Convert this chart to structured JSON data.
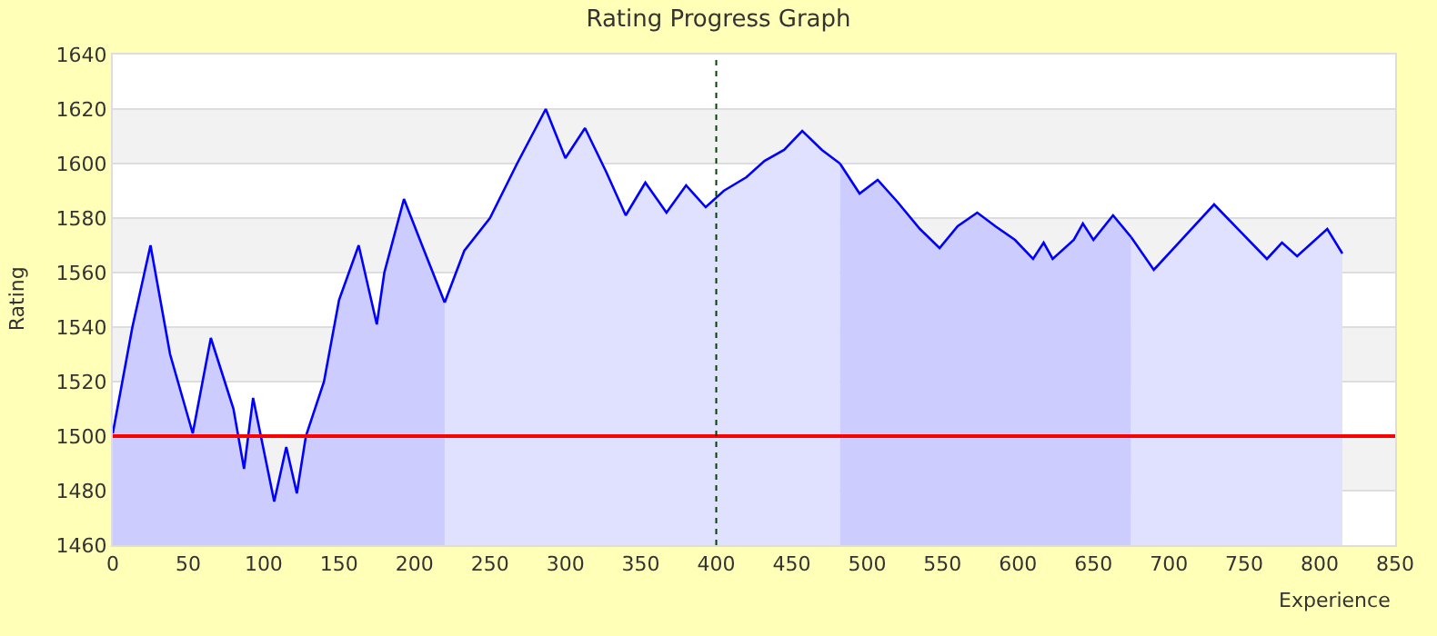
{
  "chart_data": {
    "type": "area",
    "title": "Rating Progress Graph",
    "xlabel": "Experience",
    "ylabel": "Rating",
    "series": [
      {
        "color": "#0000ff",
        "x": [
          0,
          13,
          25,
          38,
          53,
          65,
          80,
          87,
          93,
          107,
          115,
          122,
          128,
          140,
          150,
          163,
          175,
          180,
          193,
          205,
          220
        ],
        "values": [
          1501,
          1540,
          1570,
          1530,
          1501,
          1536,
          1510,
          1488,
          1514,
          1476,
          1496,
          1479,
          1500,
          1520,
          1550,
          1570,
          1541,
          1560,
          1587,
          1570,
          1549
        ]
      },
      {
        "color": "#0000ff",
        "x": [
          220,
          233,
          250,
          268,
          287,
          300,
          313,
          327,
          340,
          353,
          367,
          380,
          393,
          405,
          420,
          432,
          445,
          457,
          470,
          482
        ],
        "values": [
          1549,
          1568,
          1580,
          1600,
          1620,
          1602,
          1613,
          1597,
          1581,
          1593,
          1582,
          1592,
          1584,
          1590,
          1595,
          1601,
          1605,
          1612,
          1605,
          1600
        ]
      },
      {
        "color": "#0000ff",
        "x": [
          482,
          495,
          507,
          520,
          535,
          548,
          560,
          573,
          585,
          598,
          610,
          617,
          623,
          637,
          643,
          650,
          663,
          675
        ],
        "values": [
          1600,
          1589,
          1594,
          1586,
          1576,
          1569,
          1577,
          1582,
          1577,
          1572,
          1565,
          1571,
          1565,
          1572,
          1578,
          1572,
          1581,
          1573
        ]
      },
      {
        "color": "#0000ff",
        "x": [
          675,
          690,
          730,
          765,
          775,
          785,
          805,
          815
        ],
        "values": [
          1573,
          1561,
          1585,
          1565,
          1571,
          1566,
          1576,
          1567
        ]
      }
    ],
    "xlim": [
      0,
      850
    ],
    "xticks": [
      0,
      50,
      100,
      150,
      200,
      250,
      300,
      350,
      400,
      450,
      500,
      550,
      600,
      650,
      700,
      750,
      800,
      850
    ],
    "ylim": [
      1460,
      1640
    ],
    "yticks": [
      1460,
      1480,
      1500,
      1520,
      1540,
      1560,
      1580,
      1600,
      1620,
      1640
    ],
    "ref_lines": [
      {
        "axis": "y",
        "value": 1500,
        "color": "#ff0000",
        "line_style": "solid"
      },
      {
        "axis": "x",
        "value": 400,
        "color": "#004400",
        "line_style": "dotted"
      }
    ],
    "grid": "y"
  }
}
